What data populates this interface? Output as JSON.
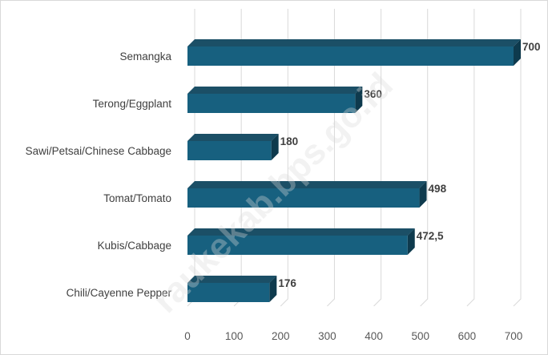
{
  "chart_data": {
    "type": "bar",
    "orientation": "horizontal",
    "style": "3d",
    "categories": [
      "Semangka",
      "Terong/Eggplant",
      "Sawi/Petsai/Chinese Cabbage",
      "Tomat/Tomato",
      "Kubis/Cabbage",
      "Chili/Cayenne Pepper"
    ],
    "values": [
      700,
      360,
      180,
      498,
      472.5,
      176
    ],
    "data_labels": [
      "700",
      "360",
      "180",
      "498",
      "472,5",
      "176"
    ],
    "x_ticks": [
      "0",
      "100",
      "200",
      "300",
      "400",
      "500",
      "600",
      "700"
    ],
    "xlim": [
      0,
      700
    ],
    "grid": true,
    "bar_color": "#17607f",
    "bar_top_color": "#1b4f66",
    "bar_side_color": "#0e3a4d",
    "gridline_color": "#d9d9d9"
  },
  "watermark": "raukekab.bps.go.id"
}
